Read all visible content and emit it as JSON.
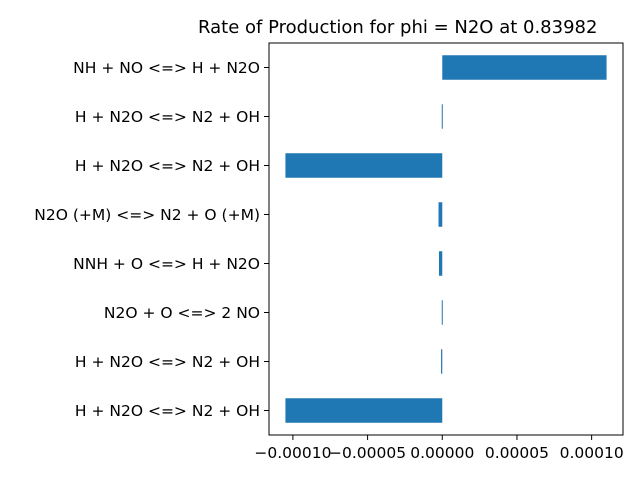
{
  "chart_data": {
    "type": "bar",
    "orientation": "horizontal",
    "title": "Rate of Production for phi = N2O at 0.83982",
    "xlabel": "",
    "ylabel": "",
    "categories": [
      "H + N2O <=> N2 + OH",
      "H + N2O <=> N2 + OH",
      "N2O + O <=> 2 NO",
      "NNH + O <=> H + N2O",
      "N2O (+M) <=> N2 + O (+M)",
      "H + N2O <=> N2 + OH",
      "H + N2O <=> N2 + OH",
      "NH + NO <=> H + N2O"
    ],
    "values": [
      -0.000105,
      -8e-07,
      -3e-07,
      -2.2e-06,
      -2.5e-06,
      -0.000105,
      5e-07,
      0.00011
    ],
    "xlim": [
      -0.000116,
      0.000121
    ],
    "xticks": [
      -0.0001,
      -5e-05,
      0.0,
      5e-05,
      0.0001
    ],
    "xtick_labels": [
      "−0.00010",
      "−0.00005",
      "0.00000",
      "0.00005",
      "0.00010"
    ],
    "bar_color": "#1f77b4",
    "grid": false,
    "legend": "none"
  }
}
